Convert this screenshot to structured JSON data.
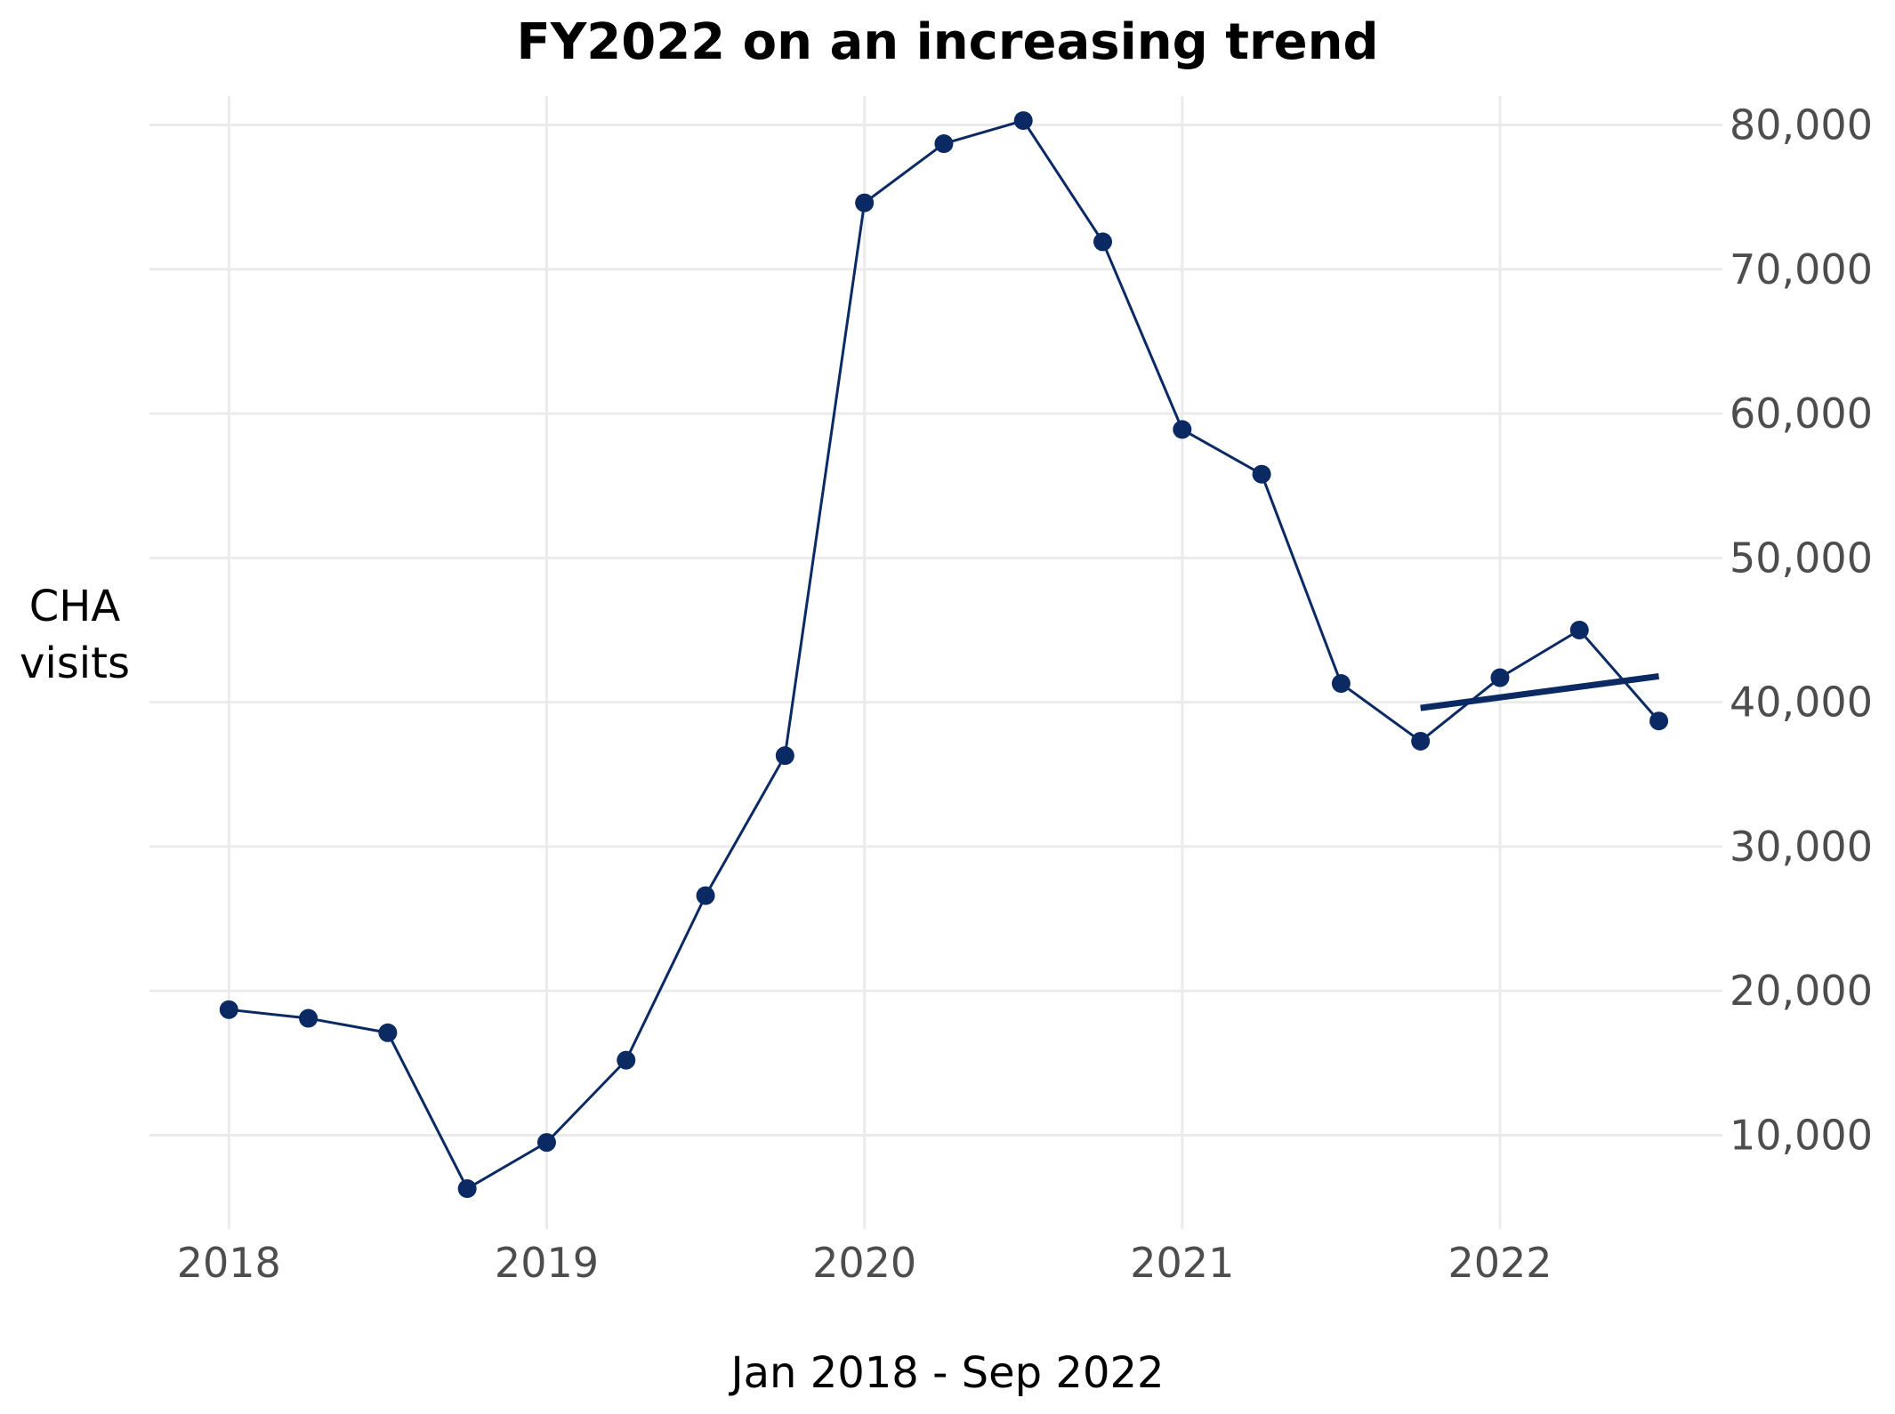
{
  "chart_data": {
    "type": "line",
    "title": "FY2022 on an increasing trend",
    "xlabel": "Jan 2018 - Sep 2022",
    "ylabel_lines": [
      "CHA",
      "visits"
    ],
    "x_tick_labels": [
      "2018",
      "2019",
      "2020",
      "2021",
      "2022"
    ],
    "y_tick_labels": [
      "10,000",
      "20,000",
      "30,000",
      "40,000",
      "50,000",
      "60,000",
      "70,000",
      "80,000"
    ],
    "y_ticks": [
      10000,
      20000,
      30000,
      40000,
      50000,
      60000,
      70000,
      80000
    ],
    "x_ticks": [
      2018,
      2019,
      2020,
      2021,
      2022
    ],
    "xlim": [
      2017.75,
      2022.7
    ],
    "ylim": [
      3500,
      82000
    ],
    "y_axis_position": "right",
    "grid": true,
    "series": [
      {
        "x": [
          2018.0,
          2018.25,
          2018.5,
          2018.75,
          2019.0,
          2019.25,
          2019.5,
          2019.75,
          2020.0,
          2020.25,
          2020.5,
          2020.75,
          2021.0,
          2021.25,
          2021.5,
          2021.75,
          2022.0,
          2022.25,
          2022.5
        ],
        "values": [
          18700,
          18100,
          17100,
          6300,
          9500,
          15200,
          26600,
          36300,
          74600,
          78700,
          80300,
          71900,
          58900,
          55800,
          41300,
          37300,
          41700,
          45000,
          38700
        ]
      }
    ],
    "trendline": {
      "x": [
        2021.75,
        2022.5
      ],
      "values": [
        39600,
        41800
      ]
    },
    "colors": {
      "line": "#0b2a63",
      "grid": "#ebebeb",
      "text": "#4d4d4d"
    }
  }
}
